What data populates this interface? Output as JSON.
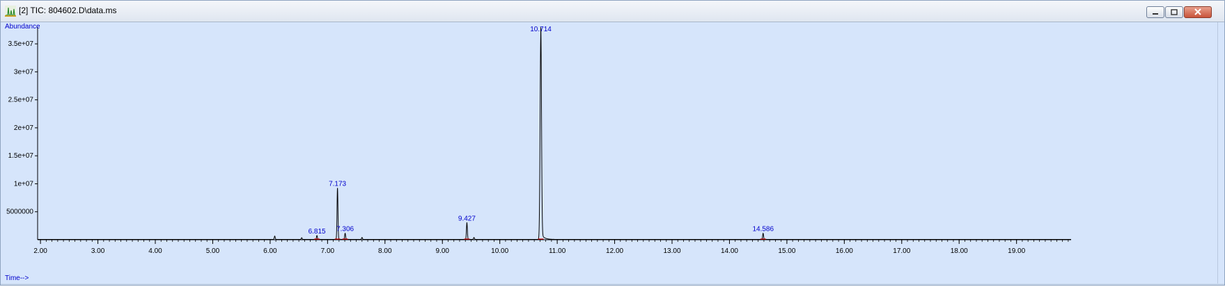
{
  "window": {
    "title": "[2] TIC: 804602.D\\data.ms",
    "buttons": [
      "minimize",
      "restore",
      "close"
    ]
  },
  "chart_data": {
    "type": "line",
    "title": "",
    "xlabel": "Time-->",
    "ylabel": "Abundance",
    "xlim": [
      1.95,
      19.95
    ],
    "ylim": [
      0,
      37000000
    ],
    "x_ticks": [
      2.0,
      3.0,
      4.0,
      5.0,
      6.0,
      7.0,
      8.0,
      9.0,
      10.0,
      11.0,
      12.0,
      13.0,
      14.0,
      15.0,
      16.0,
      17.0,
      18.0,
      19.0
    ],
    "x_tick_labels": [
      "2.00",
      "3.00",
      "4.00",
      "5.00",
      "6.00",
      "7.00",
      "8.00",
      "9.00",
      "10.00",
      "11.00",
      "12.00",
      "13.00",
      "14.00",
      "15.00",
      "16.00",
      "17.00",
      "18.00",
      "19.00"
    ],
    "y_ticks": [
      5000000,
      10000000,
      15000000,
      20000000,
      25000000,
      30000000,
      35000000
    ],
    "y_tick_labels": [
      "5000000",
      "1e+07",
      "1.5e+07",
      "2e+07",
      "2.5e+07",
      "3e+07",
      "3.5e+07"
    ],
    "peaks": [
      {
        "rt": 6.08,
        "height": 600000,
        "label": ""
      },
      {
        "rt": 6.55,
        "height": 300000,
        "label": ""
      },
      {
        "rt": 6.815,
        "height": 700000,
        "label": "6.815"
      },
      {
        "rt": 7.173,
        "height": 9200000,
        "label": "7.173"
      },
      {
        "rt": 7.306,
        "height": 1100000,
        "label": "7.306"
      },
      {
        "rt": 7.6,
        "height": 350000,
        "label": ""
      },
      {
        "rt": 9.427,
        "height": 3000000,
        "label": "9.427"
      },
      {
        "rt": 9.55,
        "height": 350000,
        "label": ""
      },
      {
        "rt": 10.714,
        "height": 36800000,
        "label": "10.714"
      },
      {
        "rt": 14.586,
        "height": 1100000,
        "label": "14.586"
      }
    ],
    "colors": {
      "trace": "#000000",
      "label": "#0000cc",
      "baseline_marks": "#cc0000",
      "axis": "#000000",
      "background": "#d6e5fb"
    }
  }
}
